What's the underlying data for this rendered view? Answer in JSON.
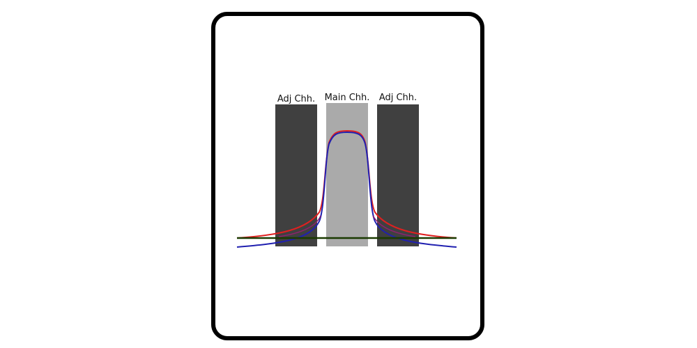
{
  "channels": [
    {
      "label": "Adj Chh."
    },
    {
      "label": "Main Chh."
    },
    {
      "label": "Adj Chh."
    }
  ]
}
